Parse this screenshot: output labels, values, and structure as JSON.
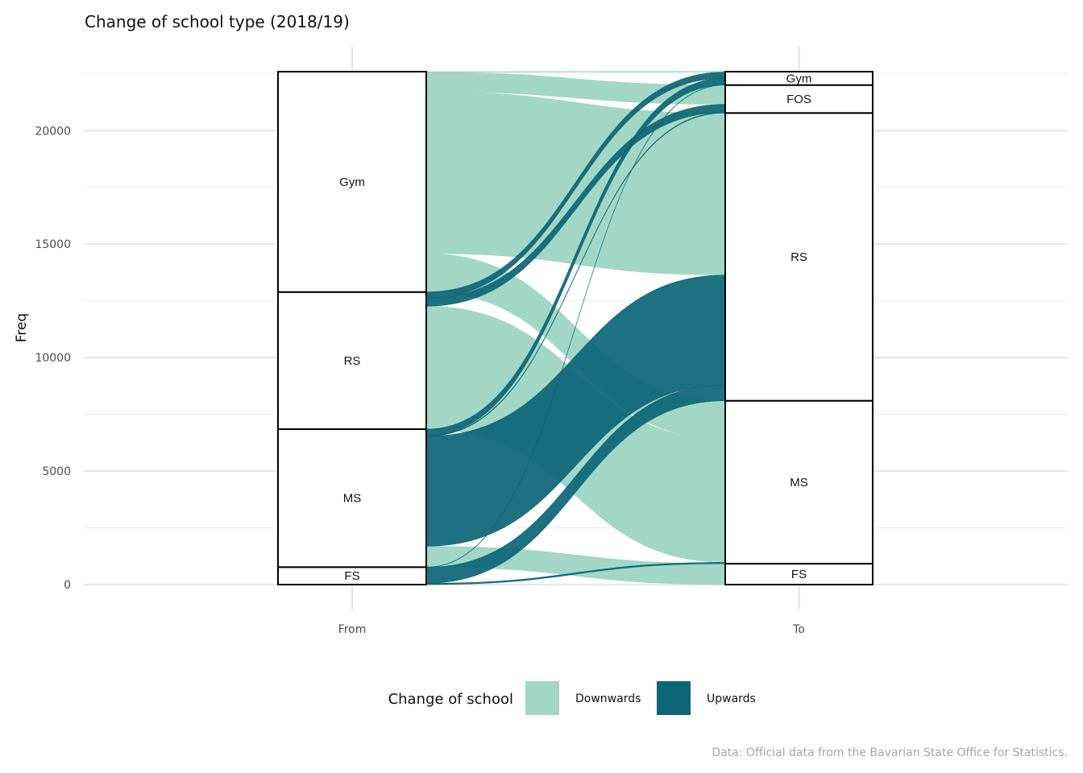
{
  "chart_data": {
    "type": "alluvial",
    "title": "Change of school type (2018/19)",
    "ylabel": "Freq",
    "xlabel": "",
    "ylim": [
      0,
      22600
    ],
    "yticks": [
      0,
      5000,
      10000,
      15000,
      20000
    ],
    "axes": [
      "From",
      "To"
    ],
    "from_strata": [
      {
        "name": "FS",
        "value": 770
      },
      {
        "name": "MS",
        "value": 6080
      },
      {
        "name": "RS",
        "value": 6040
      },
      {
        "name": "Gym",
        "value": 9710
      }
    ],
    "to_strata": [
      {
        "name": "FS",
        "value": 920
      },
      {
        "name": "MS",
        "value": 7180
      },
      {
        "name": "RS",
        "value": 12680
      },
      {
        "name": "FOS",
        "value": 1230
      },
      {
        "name": "Gym",
        "value": 590
      }
    ],
    "flows": [
      {
        "from": "FS",
        "to": "MS",
        "value": 60,
        "type": "Upwards"
      },
      {
        "from": "FS",
        "to": "RS",
        "value": 700,
        "type": "Upwards"
      },
      {
        "from": "FS",
        "to": "Gym",
        "value": 10,
        "type": "Upwards"
      },
      {
        "from": "MS",
        "to": "FS",
        "value": 920,
        "type": "Downwards"
      },
      {
        "from": "MS",
        "to": "RS",
        "value": 4840,
        "type": "Upwards"
      },
      {
        "from": "MS",
        "to": "FOS",
        "value": 30,
        "type": "Upwards"
      },
      {
        "from": "MS",
        "to": "Gym",
        "value": 290,
        "type": "Upwards"
      },
      {
        "from": "RS",
        "to": "MS",
        "value": 5420,
        "type": "Downwards"
      },
      {
        "from": "RS",
        "to": "FOS",
        "value": 350,
        "type": "Upwards"
      },
      {
        "from": "RS",
        "to": "Gym",
        "value": 270,
        "type": "Upwards"
      },
      {
        "from": "Gym",
        "to": "MS",
        "value": 1700,
        "type": "Downwards"
      },
      {
        "from": "Gym",
        "to": "RS",
        "value": 7130,
        "type": "Downwards"
      },
      {
        "from": "Gym",
        "to": "FOS",
        "value": 850,
        "type": "Downwards"
      },
      {
        "from": "Gym",
        "to": "Gym",
        "value": 30,
        "type": "Downwards"
      }
    ],
    "legend": {
      "title": "Change of school",
      "position": "bottom",
      "entries": [
        {
          "name": "Downwards",
          "color": "#a1d6c4"
        },
        {
          "name": "Upwards",
          "color": "#0c6677"
        }
      ]
    },
    "grid": true,
    "caption": "Data: Official data from the Bavarian State Office for Statistics."
  }
}
